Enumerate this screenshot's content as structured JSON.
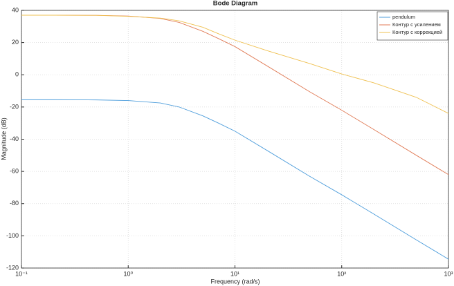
{
  "chart_data": {
    "type": "line",
    "title": "Bode Diagram",
    "x_label": "Frequency  (rad/s)",
    "y_label": "Magnitude (dB)",
    "xscale": "log",
    "grid": true,
    "legend": "top-right",
    "xlim": [
      0.1,
      1000
    ],
    "ylim": [
      -120,
      40
    ],
    "xticks": [
      {
        "value": 0.1,
        "label": "10⁻¹"
      },
      {
        "value": 1,
        "label": "10⁰"
      },
      {
        "value": 10,
        "label": "10¹"
      },
      {
        "value": 100,
        "label": "10²"
      },
      {
        "value": 1000,
        "label": "10³"
      }
    ],
    "yticks": [
      -120,
      -100,
      -80,
      -60,
      -40,
      -20,
      0,
      20,
      40
    ],
    "x": [
      0.1,
      0.2,
      0.5,
      1,
      2,
      3,
      5,
      7,
      10,
      20,
      50,
      100,
      200,
      500,
      1000
    ],
    "series": [
      {
        "name": "pendulum",
        "color": "#4d9ddb",
        "values": [
          -15.5,
          -15.5,
          -15.6,
          -16.0,
          -17.5,
          -20,
          -25.5,
          -30,
          -35,
          -47,
          -63,
          -74.5,
          -86.5,
          -102.5,
          -114.5
        ]
      },
      {
        "name": "Контур с усилением",
        "color": "#e07a55",
        "values": [
          37,
          37,
          36.9,
          36.5,
          35,
          32.5,
          27,
          22.5,
          17.5,
          5.5,
          -10.5,
          -22,
          -34,
          -50,
          -62
        ]
      },
      {
        "name": "Контур с коррекцией",
        "color": "#efc050",
        "values": [
          37,
          37,
          36.9,
          36.3,
          35.2,
          33.5,
          29.5,
          25.5,
          21.5,
          15,
          7,
          0.5,
          -5,
          -14,
          -24
        ]
      }
    ]
  }
}
